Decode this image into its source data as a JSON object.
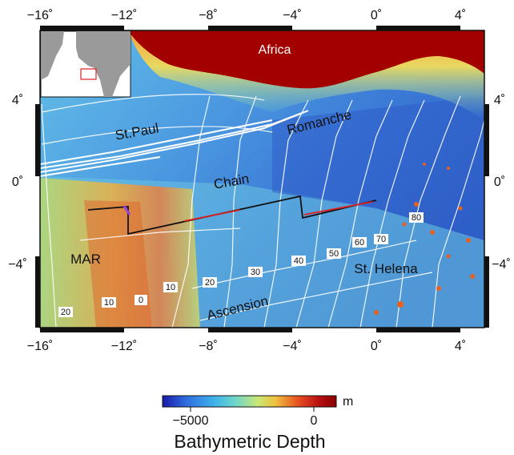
{
  "map": {
    "x_ticks": [
      "−16˚",
      "−12˚",
      "−8˚",
      "−4˚",
      "0˚",
      "4˚"
    ],
    "y_ticks": [
      "4˚",
      "0˚",
      "−4˚"
    ],
    "places": {
      "africa": "Africa",
      "st_paul": "St.Paul",
      "romanche": "Romanche",
      "chain": "Chain",
      "mar": "MAR",
      "st_helena": "St. Helena",
      "ascension": "Ascension"
    },
    "isochrons": [
      "0",
      "10",
      "10",
      "20",
      "20",
      "30",
      "40",
      "50",
      "60",
      "70",
      "80"
    ]
  },
  "colorbar": {
    "unit": "m",
    "tick_labels": [
      "−5000",
      "0"
    ],
    "title": "Bathymetric Depth",
    "stops": [
      "#1a1aa8",
      "#2f6fe0",
      "#3fb3e8",
      "#6fd6c8",
      "#c8e873",
      "#f0c040",
      "#e85020",
      "#b81010",
      "#8a0000"
    ]
  },
  "colors": {
    "land": "#a30000",
    "deep": "#2a58c8",
    "mid": "#5fb4e8",
    "ridge": "#e89050",
    "track": "#111111",
    "track_highlight": "#e02020",
    "inset_box": "#e02020"
  }
}
